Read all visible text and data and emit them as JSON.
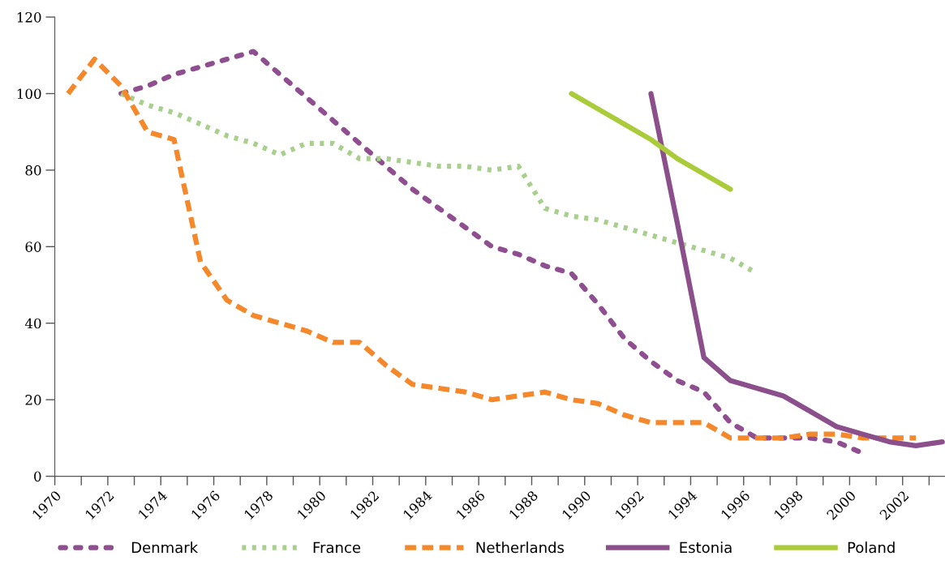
{
  "chart_data": {
    "type": "line",
    "xlim": [
      1970,
      2003.6
    ],
    "xticks": [
      1970,
      {
        "value": 1971,
        "label": null
      },
      1972,
      {
        "value": 1973,
        "label": null
      },
      1974,
      {
        "value": 1975,
        "label": null
      },
      1976,
      {
        "value": 1977,
        "label": null
      },
      1978,
      {
        "value": 1979,
        "label": null
      },
      1980,
      {
        "value": 1981,
        "label": null
      },
      1982,
      {
        "value": 1983,
        "label": null
      },
      1984,
      {
        "value": 1985,
        "label": null
      },
      1986,
      {
        "value": 1987,
        "label": null
      },
      1988,
      {
        "value": 1989,
        "label": null
      },
      1990,
      {
        "value": 1991,
        "label": null
      },
      1992,
      {
        "value": 1993,
        "label": null
      },
      1994,
      {
        "value": 1995,
        "label": null
      },
      1996,
      {
        "value": 1997,
        "label": null
      },
      1998,
      {
        "value": 1999,
        "label": null
      },
      2000,
      {
        "value": 2001,
        "label": null
      },
      2002,
      {
        "value": 2003,
        "label": null
      }
    ],
    "ylim": [
      0,
      120
    ],
    "yticks": [
      0,
      20,
      40,
      60,
      80,
      100,
      120
    ],
    "grid": false,
    "legend": "bottom",
    "series": [
      {
        "name": "Denmark",
        "color": "#8e4e8f",
        "line_style": "dotted",
        "x": [
          1972.5,
          1973.5,
          1974.5,
          1975.5,
          1976.5,
          1977.5,
          1978.5,
          1979.5,
          1980.5,
          1981.5,
          1982.5,
          1983.5,
          1984.5,
          1985.5,
          1986.5,
          1987.5,
          1988.5,
          1989.5,
          1990.5,
          1991.5,
          1992.5,
          1993.5,
          1994.5,
          1995.5,
          1996.5,
          1997.5,
          1998.5,
          1999.5,
          2000.5
        ],
        "values": [
          100,
          102,
          105,
          107,
          109,
          111,
          105,
          99,
          93,
          87,
          81,
          75,
          70,
          65,
          60,
          58,
          55,
          53,
          45,
          36,
          30,
          25,
          22,
          14,
          10,
          10,
          10,
          9,
          6
        ]
      },
      {
        "name": "France",
        "color": "#a9cf8f",
        "line_style": "dotted",
        "x": [
          1972.5,
          1973.5,
          1974.5,
          1975.5,
          1976.5,
          1977.5,
          1978.5,
          1979.5,
          1980.5,
          1981.5,
          1982.5,
          1983.5,
          1984.5,
          1985.5,
          1986.5,
          1987.5,
          1988.5,
          1989.5,
          1990.5,
          1991.5,
          1992.5,
          1993.5,
          1994.5,
          1995.5,
          1996.5
        ],
        "values": [
          100,
          97,
          95,
          92,
          89,
          87,
          84,
          87,
          87,
          83,
          83,
          82,
          81,
          81,
          80,
          81,
          70,
          68,
          67,
          65,
          63,
          61,
          59,
          57,
          53
        ]
      },
      {
        "name": "Netherlands",
        "color": "#f5882a",
        "line_style": "dashed",
        "x": [
          1970.5,
          1971.5,
          1972.5,
          1973.5,
          1974.5,
          1975.5,
          1976.5,
          1977.5,
          1978.5,
          1979.5,
          1980.5,
          1981.5,
          1982.5,
          1983.5,
          1984.5,
          1985.5,
          1986.5,
          1987.5,
          1988.5,
          1989.5,
          1990.5,
          1991.5,
          1992.5,
          1993.5,
          1994.5,
          1995.5,
          1996.5,
          1997.5,
          1998.5,
          1999.5,
          2000.5,
          2001.5,
          2002.5
        ],
        "values": [
          100,
          109,
          102,
          90,
          88,
          56,
          46,
          42,
          40,
          38,
          35,
          35,
          29,
          24,
          23,
          22,
          20,
          21,
          22,
          20,
          19,
          16,
          14,
          14,
          14,
          10,
          10,
          10,
          11,
          11,
          10,
          10,
          10
        ]
      },
      {
        "name": "Estonia",
        "color": "#8b4f8c",
        "line_style": "solid",
        "x": [
          1992.5,
          1993.5,
          1994.5,
          1995.5,
          1996.5,
          1997.5,
          1998.5,
          1999.5,
          2000.5,
          2001.5,
          2002.5,
          2003.5
        ],
        "values": [
          100,
          66,
          31,
          25,
          23,
          21,
          17,
          13,
          11,
          9,
          8,
          9
        ]
      },
      {
        "name": "Poland",
        "color": "#aacb3a",
        "line_style": "solid",
        "x": [
          1989.5,
          1990.5,
          1991.5,
          1992.5,
          1993.5,
          1994.5,
          1995.5
        ],
        "values": [
          100,
          96,
          92,
          88,
          83,
          79,
          75
        ]
      }
    ]
  }
}
